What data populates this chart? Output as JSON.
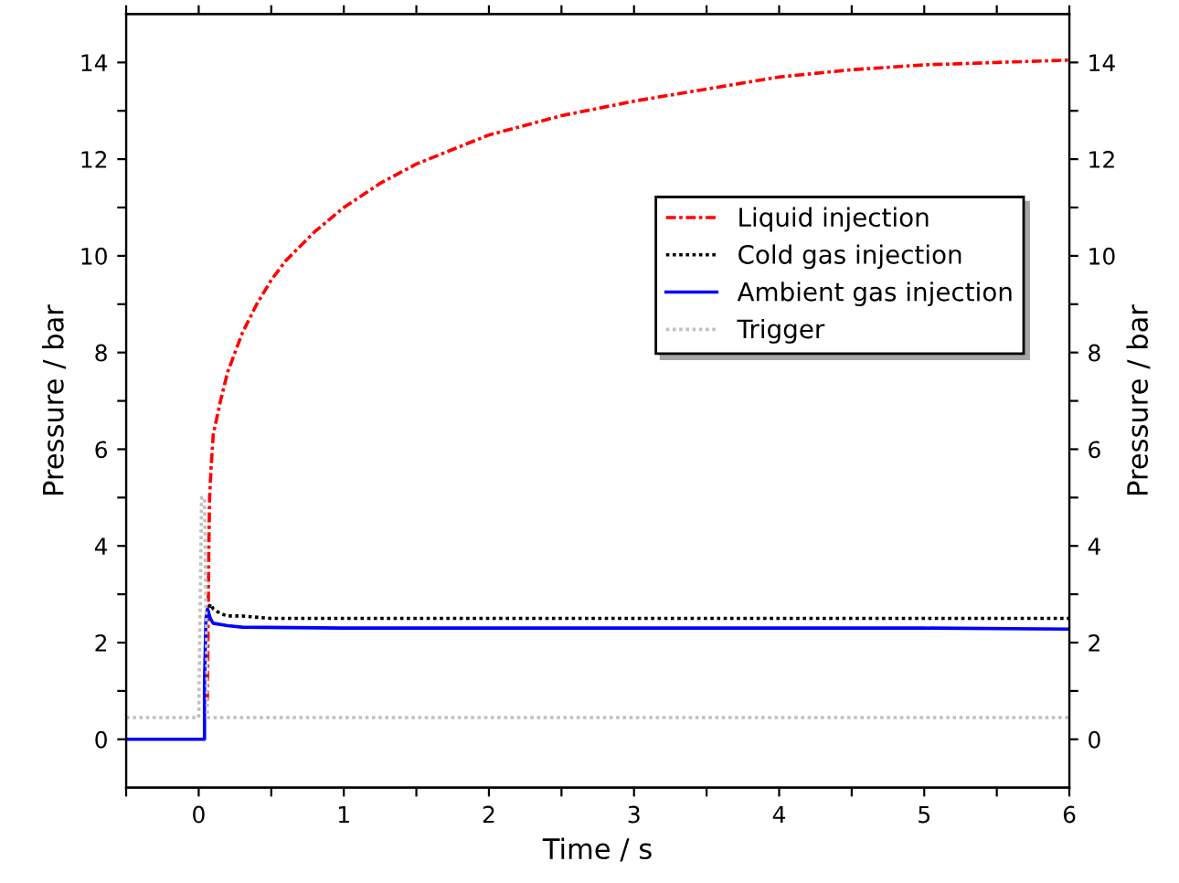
{
  "chart_data": {
    "type": "line",
    "xlabel": "Time / s",
    "ylabel": "Pressure / bar",
    "y2label": "Pressure / bar",
    "xlim": [
      -0.5,
      6
    ],
    "ylim": [
      -1,
      15
    ],
    "y2lim": [
      -1,
      15
    ],
    "xticks": [
      {
        "value": -0.5,
        "label": null
      },
      0,
      {
        "value": 0.5,
        "label": null
      },
      1,
      {
        "value": 1.5,
        "label": null
      },
      2,
      {
        "value": 2.5,
        "label": null
      },
      3,
      {
        "value": 3.5,
        "label": null
      },
      4,
      {
        "value": 4.5,
        "label": null
      },
      5,
      {
        "value": 5.5,
        "label": null
      },
      6
    ],
    "yticks": [
      0,
      {
        "value": 1,
        "label": null
      },
      2,
      {
        "value": 3,
        "label": null
      },
      4,
      {
        "value": 5,
        "label": null
      },
      6,
      {
        "value": 7,
        "label": null
      },
      8,
      {
        "value": 9,
        "label": null
      },
      10,
      {
        "value": 11,
        "label": null
      },
      12,
      {
        "value": 13,
        "label": null
      },
      14
    ],
    "y2ticks": [
      0,
      {
        "value": 1,
        "label": null
      },
      2,
      {
        "value": 3,
        "label": null
      },
      4,
      {
        "value": 5,
        "label": null
      },
      6,
      {
        "value": 7,
        "label": null
      },
      8,
      {
        "value": 9,
        "label": null
      },
      10,
      {
        "value": 11,
        "label": null
      },
      12,
      {
        "value": 13,
        "label": null
      },
      14
    ],
    "legend": "upper right",
    "grid": false,
    "series": [
      {
        "name": "Liquid injection",
        "color": "#ff0000",
        "line_style": "dashdot",
        "x": [
          0.06,
          0.065,
          0.07,
          0.075,
          0.085,
          0.1,
          0.15,
          0.2,
          0.3,
          0.4,
          0.5,
          0.6,
          0.8,
          1.0,
          1.25,
          1.5,
          1.75,
          2.0,
          2.5,
          3.0,
          3.5,
          4.0,
          4.5,
          5.0,
          5.5,
          6.0
        ],
        "values": [
          0.8,
          2.5,
          4.0,
          5.0,
          5.6,
          6.3,
          7.0,
          7.6,
          8.4,
          9.0,
          9.5,
          9.9,
          10.5,
          11.0,
          11.5,
          11.9,
          12.2,
          12.5,
          12.9,
          13.2,
          13.45,
          13.7,
          13.85,
          13.95,
          14.0,
          14.05
        ]
      },
      {
        "name": "Cold gas injection",
        "color": "#000000",
        "line_style": "dotted",
        "x": [
          0.06,
          0.08,
          0.1,
          0.15,
          0.2,
          0.3,
          0.5,
          1.0,
          2.0,
          3.0,
          4.0,
          5.0,
          6.0
        ],
        "values": [
          2.6,
          2.8,
          2.7,
          2.6,
          2.55,
          2.55,
          2.5,
          2.5,
          2.5,
          2.5,
          2.5,
          2.5,
          2.5
        ]
      },
      {
        "name": "Ambient gas injection",
        "color": "#0000ff",
        "line_style": "solid",
        "x": [
          -0.5,
          0.04,
          0.04,
          0.05,
          0.06,
          0.08,
          0.1,
          0.2,
          0.3,
          1.0,
          2.0,
          3.0,
          4.0,
          5.0,
          6.0
        ],
        "values": [
          0,
          0,
          1.2,
          2.5,
          2.7,
          2.5,
          2.4,
          2.35,
          2.32,
          2.3,
          2.3,
          2.3,
          2.3,
          2.3,
          2.28
        ]
      },
      {
        "name": "Trigger",
        "color": "#c0c0c0",
        "line_style": "dotted",
        "x": [
          -0.5,
          0.0,
          0.02,
          0.04,
          0.06,
          6.0
        ],
        "values": [
          0.45,
          0.45,
          5.0,
          5.0,
          0.45,
          0.45
        ]
      }
    ]
  }
}
